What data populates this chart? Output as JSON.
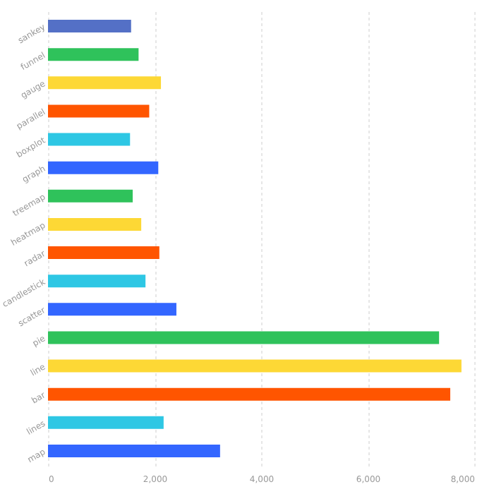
{
  "chart_data": {
    "type": "bar",
    "orientation": "horizontal",
    "categories": [
      "sankey",
      "funnel",
      "gauge",
      "parallel",
      "boxplot",
      "graph",
      "treemap",
      "heatmap",
      "radar",
      "candlestick",
      "scatter",
      "pie",
      "line",
      "bar",
      "lines",
      "map"
    ],
    "values": [
      1560,
      1700,
      2120,
      1900,
      1540,
      2070,
      1590,
      1750,
      2090,
      1830,
      2410,
      7340,
      7760,
      7550,
      2170,
      3230
    ],
    "colors": [
      "#5470c6",
      "#2fc25b",
      "#fdd835",
      "#ff5500",
      "#2ec7e4",
      "#3366ff",
      "#2fc25b",
      "#fdd835",
      "#ff5500",
      "#2ec7e4",
      "#3366ff",
      "#2fc25b",
      "#fdd835",
      "#ff5500",
      "#2ec7e4",
      "#3366ff"
    ],
    "xlim": [
      0,
      8000
    ],
    "xticks": [
      0,
      {
        "value": 2000,
        "label": "2,000"
      },
      {
        "value": 4000,
        "label": "4,000"
      },
      {
        "value": 6000,
        "label": "6,000"
      },
      {
        "value": 8000,
        "label": "8,000"
      }
    ],
    "grid": "x"
  }
}
